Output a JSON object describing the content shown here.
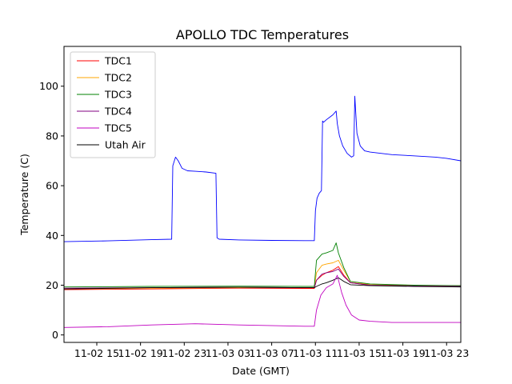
{
  "chart_data": {
    "type": "line",
    "title": "APOLLO TDC Temperatures",
    "xlabel": "Date (GMT)",
    "ylabel": "Temperature (C)",
    "xlim": [
      12.0,
      48.3
    ],
    "ylim": [
      -3,
      116
    ],
    "x_unit": "hours since 11-02 00:00 GMT",
    "xticks": [
      {
        "value": 15,
        "label": "11-02 15"
      },
      {
        "value": 19,
        "label": "11-02 19"
      },
      {
        "value": 23,
        "label": "11-02 23"
      },
      {
        "value": 27,
        "label": "11-03 03"
      },
      {
        "value": 31,
        "label": "11-03 07"
      },
      {
        "value": 35,
        "label": "11-03 11"
      },
      {
        "value": 39,
        "label": "11-03 15"
      },
      {
        "value": 43,
        "label": "11-03 19"
      },
      {
        "value": 47,
        "label": "11-03 23"
      }
    ],
    "yticks": [
      0,
      20,
      40,
      60,
      80,
      100
    ],
    "legend_position": "top-left",
    "series": [
      {
        "name": "TDC1",
        "color": "#ff0000",
        "x": [
          12.0,
          20.0,
          28.0,
          34.0,
          34.9,
          35.1,
          35.6,
          36.0,
          36.6,
          37.1,
          37.6,
          38.2,
          40.0,
          44.0,
          48.3
        ],
        "y": [
          18.2,
          18.5,
          18.8,
          18.7,
          18.7,
          22.0,
          24.0,
          25.0,
          26.0,
          27.5,
          24.0,
          21.0,
          20.0,
          19.8,
          19.7
        ]
      },
      {
        "name": "TDC2",
        "color": "#ffa500",
        "x": [
          12.0,
          20.0,
          28.0,
          34.0,
          34.9,
          35.1,
          35.6,
          36.0,
          36.6,
          37.1,
          37.6,
          38.2,
          40.0,
          44.0,
          48.3
        ],
        "y": [
          18.5,
          18.8,
          19.0,
          19.0,
          19.0,
          25.0,
          28.0,
          28.5,
          29.0,
          30.0,
          26.0,
          21.5,
          20.2,
          19.9,
          19.8
        ]
      },
      {
        "name": "TDC3",
        "color": "#008000",
        "x": [
          12.0,
          20.0,
          28.0,
          34.0,
          34.9,
          35.1,
          35.6,
          36.0,
          36.6,
          36.9,
          37.1,
          37.6,
          38.2,
          40.0,
          44.0,
          48.3
        ],
        "y": [
          19.3,
          19.5,
          19.6,
          19.5,
          19.5,
          30.0,
          32.5,
          33.0,
          34.0,
          37.0,
          33.0,
          27.0,
          21.5,
          20.5,
          20.0,
          19.8
        ]
      },
      {
        "name": "TDC4",
        "color": "#800080",
        "x": [
          12.0,
          20.0,
          28.0,
          34.0,
          34.9,
          35.1,
          35.6,
          36.0,
          36.6,
          37.1,
          37.6,
          38.2,
          40.0,
          44.0,
          48.3
        ],
        "y": [
          18.8,
          19.0,
          19.2,
          19.0,
          19.0,
          22.0,
          24.5,
          25.0,
          25.5,
          26.5,
          23.5,
          21.0,
          20.0,
          19.7,
          19.5
        ]
      },
      {
        "name": "TDC5",
        "color": "#c000c0",
        "x": [
          12.0,
          16.0,
          20.0,
          24.0,
          28.0,
          34.0,
          34.9,
          35.1,
          35.5,
          36.0,
          36.6,
          37.0,
          37.4,
          37.8,
          38.3,
          39.0,
          40.0,
          42.0,
          44.0,
          48.3
        ],
        "y": [
          3.0,
          3.3,
          4.0,
          4.5,
          4.0,
          3.5,
          3.5,
          10.0,
          16.0,
          19.0,
          20.5,
          24.0,
          17.0,
          12.0,
          8.0,
          6.0,
          5.5,
          5.0,
          5.0,
          5.0
        ]
      },
      {
        "name": "Utah Air",
        "color": "#000000",
        "x": [
          12.0,
          20.0,
          28.0,
          34.0,
          34.9,
          35.1,
          35.6,
          36.0,
          36.6,
          37.1,
          37.6,
          38.2,
          40.0,
          44.0,
          48.3
        ],
        "y": [
          18.5,
          19.0,
          19.2,
          19.0,
          19.0,
          19.5,
          20.5,
          21.0,
          22.0,
          23.0,
          21.5,
          20.2,
          19.8,
          19.5,
          19.3
        ]
      },
      {
        "name": "Utah Air enclosure (unlabeled blue trace)",
        "color": "#0000ff",
        "legend": false,
        "x": [
          12.0,
          16.0,
          20.0,
          21.85,
          21.95,
          22.2,
          22.45,
          22.8,
          23.3,
          24.0,
          25.0,
          25.9,
          26.0,
          26.2,
          28.0,
          31.0,
          34.0,
          34.9,
          35.0,
          35.15,
          35.35,
          35.55,
          35.65,
          35.75,
          36.0,
          36.3,
          36.6,
          36.9,
          37.0,
          37.2,
          37.5,
          37.9,
          38.3,
          38.5,
          38.6,
          38.8,
          39.1,
          39.5,
          40.0,
          42.0,
          44.0,
          46.0,
          47.0,
          48.3
        ],
        "y": [
          37.5,
          37.8,
          38.3,
          38.5,
          68.0,
          71.5,
          70.0,
          67.0,
          66.0,
          65.8,
          65.5,
          65.0,
          39.0,
          38.5,
          38.2,
          38.0,
          37.9,
          37.9,
          50.0,
          55.0,
          57.0,
          58.0,
          86.0,
          85.5,
          86.5,
          87.5,
          88.5,
          90.0,
          85.0,
          80.0,
          76.0,
          73.0,
          71.5,
          72.0,
          96.0,
          81.0,
          76.0,
          74.0,
          73.5,
          72.5,
          72.0,
          71.5,
          71.0,
          70.0
        ]
      }
    ]
  }
}
